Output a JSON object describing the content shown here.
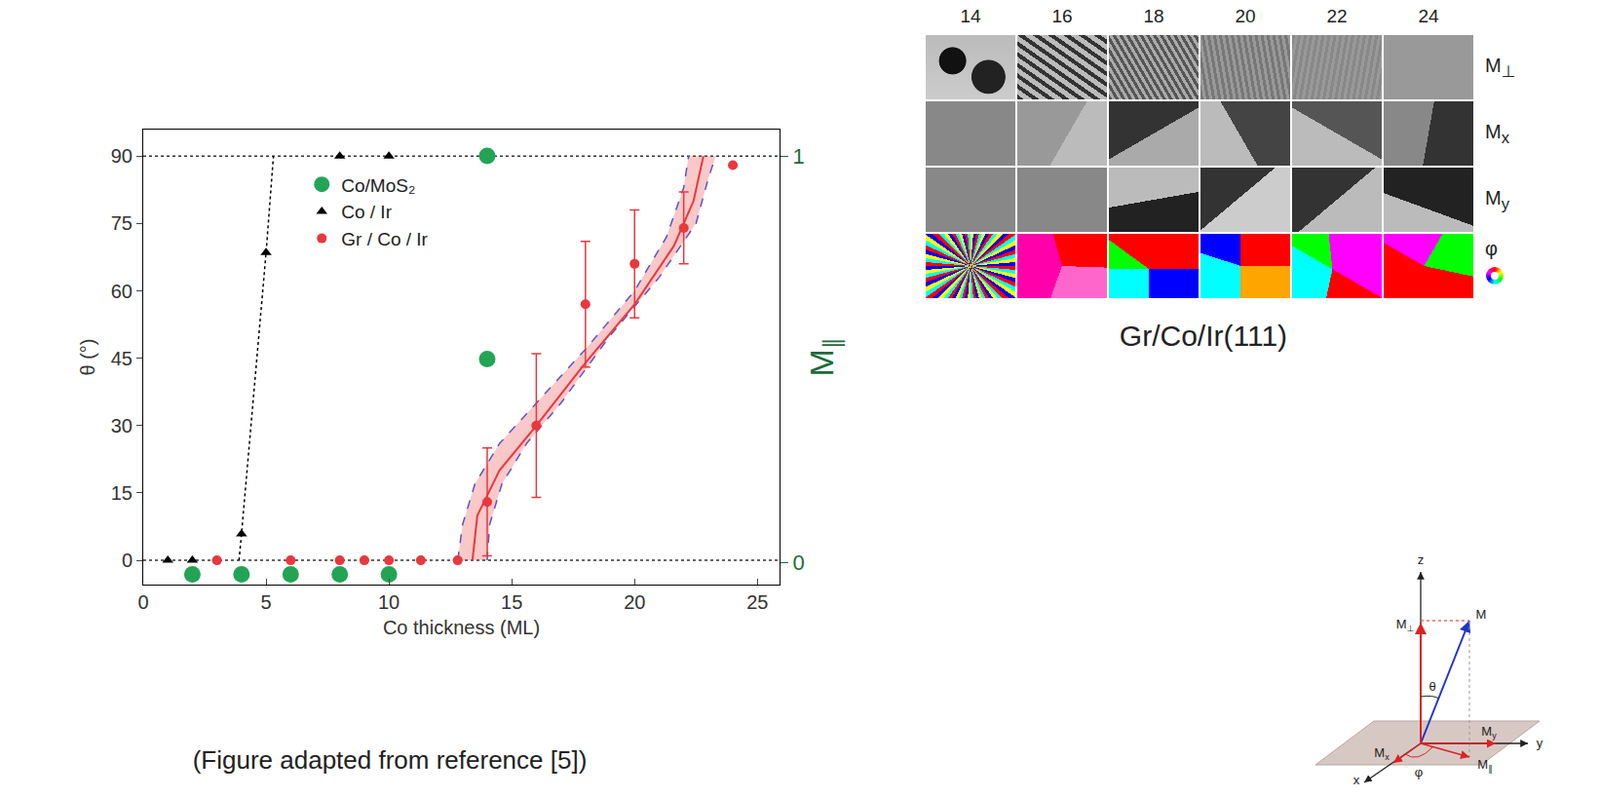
{
  "chart_data": {
    "type": "scatter",
    "x_label": "Co thickness (ML)",
    "y_label": "θ (°)",
    "y2_label": "M∥",
    "xlim": [
      0,
      25.9
    ],
    "xticks": [
      0,
      5,
      10,
      15,
      20,
      25
    ],
    "ylim": [
      -5.4,
      95.9
    ],
    "yticks": [
      0,
      15,
      30,
      45,
      60,
      75,
      90
    ],
    "y2lim": [
      -0.055,
      1.065
    ],
    "y2ticks": [
      0,
      1
    ],
    "hlines": [
      0,
      90
    ],
    "grid": false,
    "legend": "upper left",
    "series": [
      {
        "name": "Co/MoS₂",
        "color": "#23a455",
        "marker": "circle",
        "axis": "y2",
        "x": [
          2,
          4,
          6,
          8,
          10,
          14,
          14
        ],
        "values": [
          -0.03,
          -0.03,
          -0.03,
          -0.03,
          -0.03,
          1,
          0.5
        ]
      },
      {
        "name": "Co / Ir",
        "color": "#000000",
        "marker": "triangle",
        "line_style": "dotted",
        "x": [
          1,
          2,
          4,
          5,
          8,
          10
        ],
        "values": [
          0,
          0,
          5.9,
          68.5,
          90,
          90
        ],
        "fit": {
          "x": [
            3.9,
            4,
            5,
            5.3
          ],
          "y": [
            0,
            5.9,
            68.5,
            90
          ]
        }
      },
      {
        "name": "Gr / Co / Ir",
        "color": "#e8383d",
        "marker": "circle",
        "line_style": "solid",
        "x": [
          3,
          6,
          8,
          9,
          10,
          11.3,
          12.8,
          14,
          16,
          18,
          20,
          22,
          24
        ],
        "values": [
          0,
          0,
          0,
          0,
          0,
          0,
          0,
          13,
          30,
          57,
          66,
          74,
          88
        ],
        "errors": [
          null,
          null,
          null,
          null,
          null,
          null,
          null,
          12,
          16,
          14,
          12,
          8,
          null
        ],
        "fit": {
          "x": [
            13.4,
            13.6,
            14.5,
            16,
            18,
            20,
            21.6,
            22.4,
            22.8
          ],
          "y": [
            0,
            10,
            20,
            30,
            44,
            57,
            70,
            80,
            90
          ]
        },
        "band": {
          "left": {
            "x": [
              12.8,
              13.0,
              13.5,
              14.5,
              16,
              18,
              20,
              21.3,
              22,
              22.2
            ],
            "y": [
              0,
              8,
              17,
              26,
              35,
              47,
              60,
              72,
              83,
              90
            ]
          },
          "right": {
            "x": [
              14,
              14.1,
              14.6,
              15.6,
              17,
              19,
              21,
              22.5,
              23,
              23.3
            ],
            "y": [
              0,
              8,
              17,
              26,
              35,
              50,
              63,
              75,
              85,
              90
            ]
          }
        }
      }
    ]
  },
  "caption": "(Figure adapted from reference [5])",
  "panel": {
    "title": "Gr/Co/Ir(111)",
    "columns": [
      14,
      16,
      18,
      20,
      22,
      24
    ],
    "rows": [
      "M⊥",
      "Mx",
      "My",
      "φ"
    ]
  },
  "diagram": {
    "z": "z",
    "x": "x",
    "y": "y",
    "M": "M",
    "M_perp": "M⊥",
    "M_x": "Mx",
    "M_y": "My",
    "M_par": "M∥",
    "theta": "θ",
    "phi": "φ"
  }
}
